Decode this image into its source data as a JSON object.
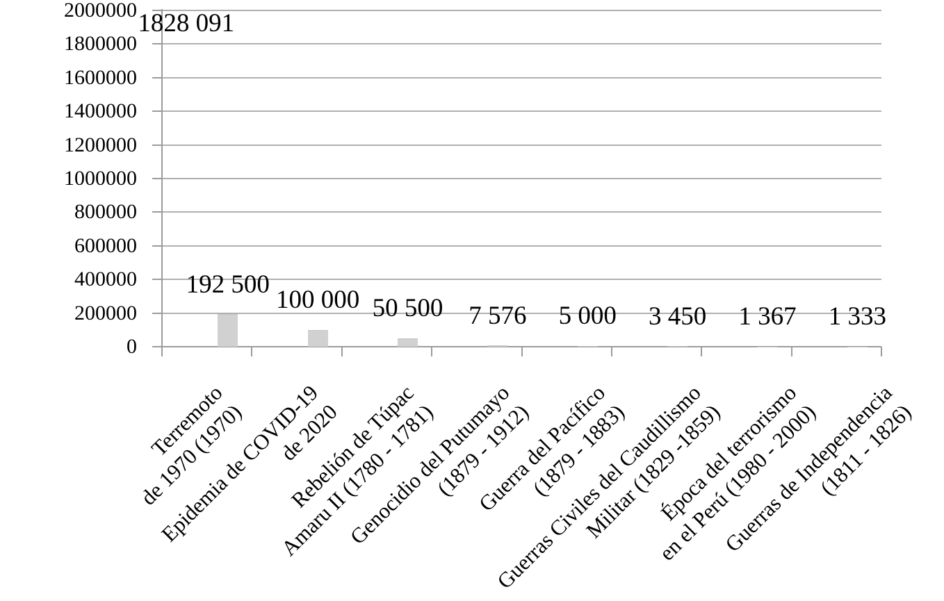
{
  "chart_data": {
    "type": "bar",
    "title": "",
    "legend_position": "none",
    "grid": true,
    "ylim": [
      0,
      2000000
    ],
    "ytick_step": 200000,
    "ytick_labels": [
      "0",
      "200000",
      "400000",
      "600000",
      "800000",
      "1000000",
      "1200000",
      "1400000",
      "1600000",
      "1800000",
      "2000000"
    ],
    "categories": [
      {
        "line1": "Terremoto",
        "line2": "de 1970 (1970)"
      },
      {
        "line1": "Epidemia de COVID-19",
        "line2": "de 2020"
      },
      {
        "line1": "Rebelión de Túpac",
        "line2": "Amaru II (1780 - 1781)"
      },
      {
        "line1": "Genocidio del Putumayo",
        "line2": "(1879 - 1912)"
      },
      {
        "line1": "Guerra del Pacífico",
        "line2": "(1879 - 1883)"
      },
      {
        "line1": "Guerras Civiles del Caudillismo",
        "line2": "Militar (1829 -1859)"
      },
      {
        "line1": "Época del terrorismo",
        "line2": "en el Perú (1980 - 2000)"
      },
      {
        "line1": "Guerras de Independencia",
        "line2": "(1811 - 1826)"
      }
    ],
    "values": [
      192500,
      100000,
      50500,
      7576,
      5000,
      3450,
      1367,
      1333
    ],
    "value_labels": [
      "192 500",
      "100 000",
      "50 500",
      "7 576",
      "5 000",
      "3 450",
      "1 367",
      "1 333"
    ],
    "extra_label": {
      "text": "1828 091",
      "value": 1828091,
      "slot_index": 0,
      "bar_visible": false
    },
    "colors": {
      "bar_fill": "#d1d1d1",
      "bar_border": "#c6c6c6",
      "gridline": "#b0b0b0",
      "axis": "#9b9b9b",
      "text": "#000000",
      "background": "#ffffff"
    }
  }
}
